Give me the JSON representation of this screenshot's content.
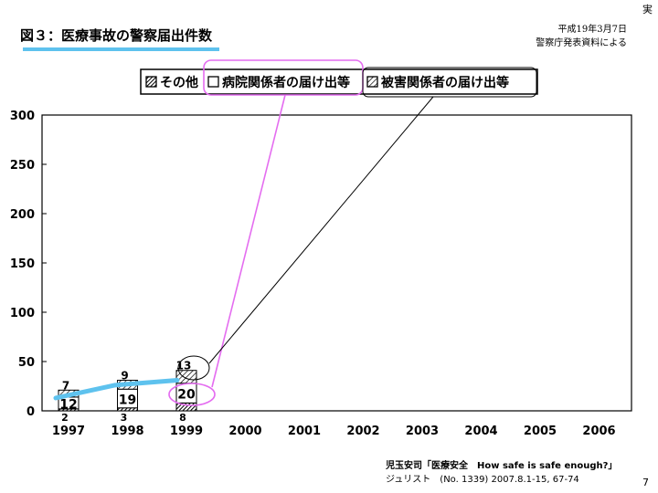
{
  "slide": {
    "title": "図３：医療事故の警察届出件数",
    "corner_mark": "実",
    "source_line1": "平成19年3月7日",
    "source_line2": "警察庁発表資料による",
    "citation_line1": "児玉安司「医療安全　How safe is safe enough?」",
    "citation_line2": "ジュリスト　(No. 1339) 2007.8.1-15, 67-74",
    "page_number": "7",
    "accent_color": "#5ec2ee",
    "highlight_color": "#e46cf0"
  },
  "chart_data": {
    "type": "bar",
    "stacked": true,
    "title": "",
    "xlabel": "",
    "ylabel": "",
    "categories": [
      "1997",
      "1998",
      "1999",
      "2000",
      "2001",
      "2002",
      "2003",
      "2004",
      "2005",
      "2006"
    ],
    "ylim": [
      0,
      300
    ],
    "yticks": [
      "0",
      "50",
      "100",
      "150",
      "200",
      "250",
      "300"
    ],
    "grid": false,
    "legend_position": "top",
    "series": [
      {
        "name": "その他",
        "pattern": "diagonal-solid",
        "values": [
          2,
          3,
          8,
          null,
          null,
          null,
          null,
          null,
          null,
          null
        ],
        "labels": [
          "2",
          "3",
          "8",
          "",
          "",
          "",
          "",
          "",
          "",
          ""
        ]
      },
      {
        "name": "病院関係者の届け出等",
        "pattern": "white",
        "values": [
          12,
          19,
          20,
          null,
          null,
          null,
          null,
          null,
          null,
          null
        ],
        "labels": [
          "12",
          "19",
          "20",
          "",
          "",
          "",
          "",
          "",
          "",
          ""
        ]
      },
      {
        "name": "被害関係者の届け出等",
        "pattern": "hatched",
        "values": [
          7,
          9,
          13,
          null,
          null,
          null,
          null,
          null,
          null,
          null
        ],
        "labels": [
          "7",
          "9",
          "13",
          "",
          "",
          "",
          "",
          "",
          "",
          ""
        ]
      }
    ],
    "trend_line": {
      "color": "#5ec2ee",
      "values": [
        13,
        26,
        31
      ]
    }
  }
}
